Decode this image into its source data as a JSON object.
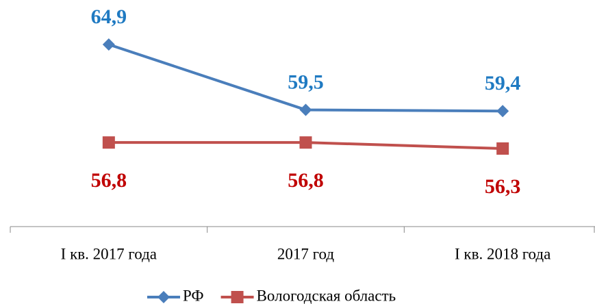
{
  "chart_data": {
    "type": "line",
    "categories": [
      "I кв. 2017 года",
      "2017 год",
      "I кв. 2018 года"
    ],
    "series": [
      {
        "name": "РФ",
        "color": "#4a7ebb",
        "label_color": "#1f7ac2",
        "marker": "diamond",
        "label_position": "above",
        "values": [
          64.9,
          59.5,
          59.4
        ],
        "value_labels": [
          "64,9",
          "59,5",
          "59,4"
        ]
      },
      {
        "name": "Вологодская область",
        "color": "#c0504d",
        "label_color": "#c00000",
        "marker": "square",
        "label_position": "below",
        "values": [
          56.8,
          56.8,
          56.3
        ],
        "value_labels": [
          "56,8",
          "56,8",
          "56,3"
        ]
      }
    ],
    "legend": "bottom"
  }
}
